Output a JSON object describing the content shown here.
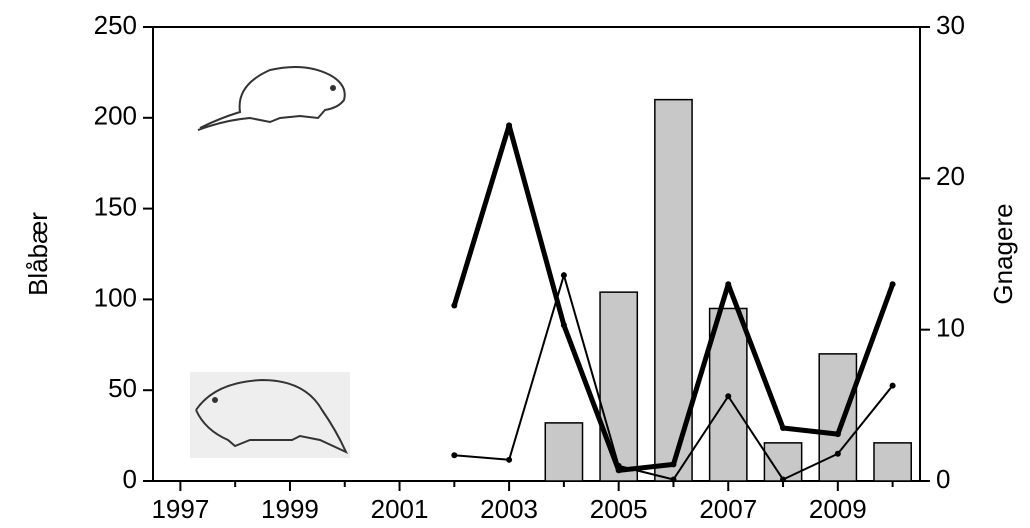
{
  "chart_data": {
    "type": "bar-line",
    "y_label": "Blåbær",
    "y2_label": "Gnagere",
    "xlim": [
      1996.5,
      2010.5
    ],
    "xticks": [
      1997,
      1999,
      2001,
      2003,
      2005,
      2007,
      2009
    ],
    "xminorticks": [
      1998,
      2000,
      2002,
      2004,
      2006,
      2008,
      2010
    ],
    "ylim": [
      0,
      250
    ],
    "yticks": [
      0,
      50,
      100,
      150,
      200,
      250
    ],
    "y2lim": [
      0,
      30
    ],
    "y2ticks": [
      0,
      10,
      20,
      30
    ],
    "series": [
      {
        "type": "bar",
        "color": "#c8c8c8",
        "x": [
          2004,
          2005,
          2006,
          2007,
          2008,
          2009,
          2010
        ],
        "values": [
          32,
          104,
          210,
          95,
          21,
          70,
          21
        ]
      },
      {
        "type": "line",
        "axis": "y2",
        "color": "#000000",
        "width": 5,
        "x": [
          2002,
          2003,
          2004,
          2005,
          2006,
          2007,
          2008,
          2009,
          2010
        ],
        "values": [
          11.6,
          23.5,
          10.3,
          0.7,
          1.1,
          13.0,
          3.5,
          3.1,
          13.0
        ]
      },
      {
        "type": "line",
        "axis": "y2",
        "color": "#000000",
        "width": 2,
        "x": [
          2002,
          2003,
          2004,
          2005,
          2006,
          2007,
          2008,
          2009,
          2010
        ],
        "values": [
          1.7,
          1.4,
          13.6,
          1.0,
          0.1,
          5.6,
          0.1,
          1.8,
          6.3
        ]
      }
    ]
  }
}
